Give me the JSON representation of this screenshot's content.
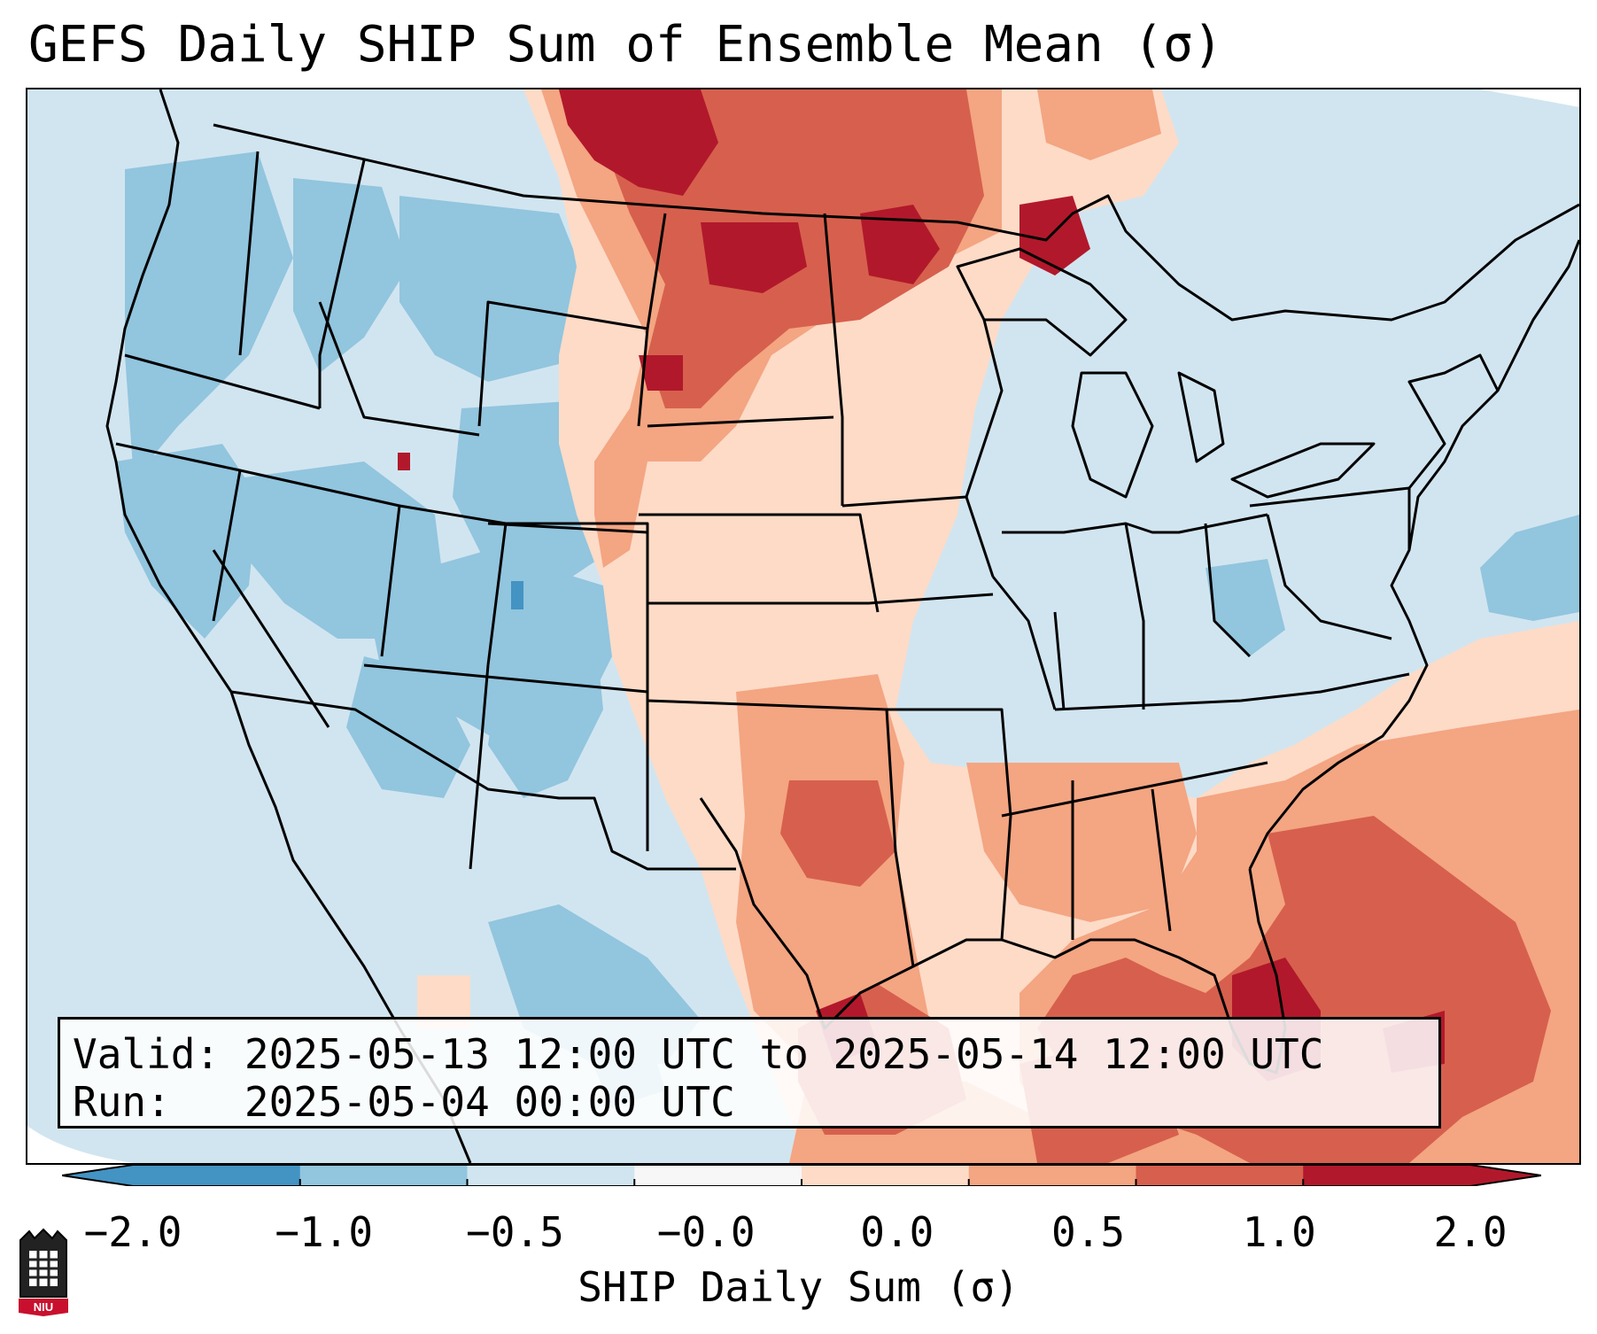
{
  "title": "GEFS Daily SHIP Sum of Ensemble Mean (σ)",
  "info": {
    "valid_label": "Valid:",
    "valid_value": "2025-05-13 12:00 UTC to 2025-05-14 12:00 UTC",
    "run_label": "Run:",
    "run_value": "2025-05-04 00:00 UTC"
  },
  "colorbar": {
    "label": "SHIP Daily Sum (σ)",
    "ticks": [
      "−2.0",
      "−1.0",
      "−0.5",
      "−0.0",
      "0.0",
      "0.5",
      "1.0",
      "2.0"
    ],
    "colors": [
      "#4393c3",
      "#92c5de",
      "#d1e5f0",
      "#f7f7f7",
      "#fddbc7",
      "#f4a582",
      "#d6604d",
      "#b2182b"
    ],
    "extend": "both"
  },
  "map": {
    "region": "Contiguous United States",
    "background_color": "#d1e5f0",
    "field_levels": [
      "-1.0 to -0.5",
      "-0.5 to 0.0",
      "0.0 to 0.5",
      "0.5 to 1.0",
      "1.0 to 2.0",
      "above 2.0"
    ]
  },
  "logo": {
    "text": "NIU"
  }
}
